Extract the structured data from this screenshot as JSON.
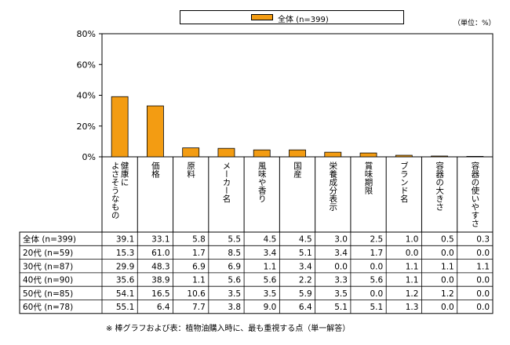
{
  "legend": {
    "label": "全体 (n=399)"
  },
  "unit": "（単位：%）",
  "footnote": "※ 棒グラフおよび表：植物油購入時に、最も重視する点（単一解答）",
  "chart_data": {
    "type": "bar",
    "categories": [
      "健康によさそうなもの",
      "価格",
      "原料",
      "メーカー名",
      "風味や香り",
      "国産",
      "栄養成分表示",
      "賞味期限",
      "ブランド名",
      "容器の大きさ",
      "容器の使いやすさ"
    ],
    "category_lines": [
      [
        "健康に",
        "よさそうなもの"
      ],
      [
        "価格"
      ],
      [
        "原料"
      ],
      [
        "メーカー名"
      ],
      [
        "風味や香り"
      ],
      [
        "国産"
      ],
      [
        "栄養成分表示"
      ],
      [
        "賞味期限"
      ],
      [
        "ブランド名"
      ],
      [
        "容器の大きさ"
      ],
      [
        "容器の使いやすさ"
      ]
    ],
    "ylim": [
      0,
      80
    ],
    "yticks": [
      "0%",
      "20%",
      "40%",
      "60%",
      "80%"
    ],
    "series": [
      {
        "name": "全体 (n=399)",
        "values": [
          39.1,
          33.1,
          5.8,
          5.5,
          4.5,
          4.5,
          3.0,
          2.5,
          1.0,
          0.5,
          0.3
        ],
        "color": "#f39c12"
      }
    ],
    "table": {
      "rows": [
        {
          "label": "全体 (n=399)",
          "values": [
            "39.1",
            "33.1",
            "5.8",
            "5.5",
            "4.5",
            "4.5",
            "3.0",
            "2.5",
            "1.0",
            "0.5",
            "0.3"
          ]
        },
        {
          "label": "20代 (n=59)",
          "values": [
            "15.3",
            "61.0",
            "1.7",
            "8.5",
            "3.4",
            "5.1",
            "3.4",
            "1.7",
            "0.0",
            "0.0",
            "0.0"
          ]
        },
        {
          "label": "30代 (n=87)",
          "values": [
            "29.9",
            "48.3",
            "6.9",
            "6.9",
            "1.1",
            "3.4",
            "0.0",
            "0.0",
            "1.1",
            "1.1",
            "1.1"
          ]
        },
        {
          "label": "40代 (n=90)",
          "values": [
            "35.6",
            "38.9",
            "1.1",
            "5.6",
            "5.6",
            "2.2",
            "3.3",
            "5.6",
            "1.1",
            "0.0",
            "0.0"
          ]
        },
        {
          "label": "50代 (n=85)",
          "values": [
            "54.1",
            "16.5",
            "10.6",
            "3.5",
            "3.5",
            "5.9",
            "3.5",
            "0.0",
            "1.2",
            "1.2",
            "0.0"
          ]
        },
        {
          "label": "60代 (n=78)",
          "values": [
            "55.1",
            "6.4",
            "7.7",
            "3.8",
            "9.0",
            "6.4",
            "5.1",
            "5.1",
            "1.3",
            "0.0",
            "0.0"
          ]
        }
      ]
    }
  }
}
